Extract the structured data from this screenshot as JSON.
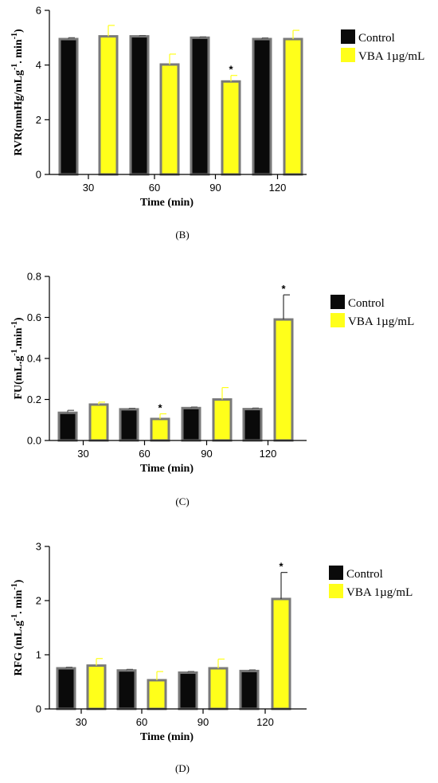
{
  "colors": {
    "control": "#0a0a0a",
    "vba": "#ffff1a",
    "bar_stroke": "#7a7a7a",
    "axis": "#000000"
  },
  "chart_data": [
    {
      "type": "bar",
      "panel_label": "(B)",
      "ylabel": {
        "base": "RVR(mmHg/mLg",
        "sup1": "-1",
        "mid": ". min",
        "sup2": "-1",
        "tail": ")"
      },
      "xlabel": "Time (min)",
      "categories": [
        "30",
        "60",
        "90",
        "120"
      ],
      "ylim": [
        0,
        6
      ],
      "yticks": [
        "0",
        "2",
        "4",
        "6"
      ],
      "series": [
        {
          "name": "Control",
          "values": [
            4.95,
            5.05,
            5.0,
            4.95
          ],
          "errors": [
            0.05,
            0.03,
            0.03,
            0.04
          ]
        },
        {
          "name": "VBA 1µg/mL",
          "values": [
            5.05,
            4.02,
            3.4,
            4.95
          ],
          "errors": [
            0.4,
            0.38,
            0.22,
            0.32
          ]
        }
      ],
      "significance": [
        "",
        "",
        "*",
        ""
      ],
      "legend": [
        "Control",
        "VBA 1µg/mL"
      ]
    },
    {
      "type": "bar",
      "panel_label": "(C)",
      "ylabel": {
        "base": "FU(mL.g",
        "sup1": "-1",
        "mid": ".min",
        "sup2": "-1",
        "tail": ")"
      },
      "xlabel": "Time (min)",
      "categories": [
        "30",
        "60",
        "90",
        "120"
      ],
      "ylim": [
        0,
        0.8
      ],
      "yticks": [
        "0.0",
        "0.2",
        "0.4",
        "0.6",
        "0.8"
      ],
      "series": [
        {
          "name": "Control",
          "values": [
            0.135,
            0.152,
            0.158,
            0.153
          ],
          "errors": [
            0.012,
            0.005,
            0.005,
            0.005
          ]
        },
        {
          "name": "VBA 1µg/mL",
          "values": [
            0.175,
            0.105,
            0.2,
            0.59
          ],
          "errors": [
            0.012,
            0.025,
            0.058,
            0.12
          ]
        }
      ],
      "significance": [
        "",
        "*",
        "",
        "*"
      ],
      "legend": [
        "Control",
        "VBA 1µg/mL"
      ]
    },
    {
      "type": "bar",
      "panel_label": "(D)",
      "ylabel": {
        "base": "RFG (mL.g",
        "sup1": "-1",
        "mid": ". min",
        "sup2": "-1",
        "tail": ")"
      },
      "xlabel": "Time (min)",
      "categories": [
        "30",
        "60",
        "90",
        "120"
      ],
      "ylim": [
        0,
        3
      ],
      "yticks": [
        "0",
        "1",
        "2",
        "3"
      ],
      "series": [
        {
          "name": "Control",
          "values": [
            0.75,
            0.71,
            0.67,
            0.7
          ],
          "errors": [
            0.02,
            0.02,
            0.02,
            0.02
          ]
        },
        {
          "name": "VBA 1µg/mL",
          "values": [
            0.8,
            0.53,
            0.75,
            2.03
          ],
          "errors": [
            0.13,
            0.16,
            0.17,
            0.49
          ]
        }
      ],
      "significance": [
        "",
        "",
        "",
        "*"
      ],
      "legend": [
        "Control",
        "VBA 1µg/mL"
      ]
    }
  ]
}
